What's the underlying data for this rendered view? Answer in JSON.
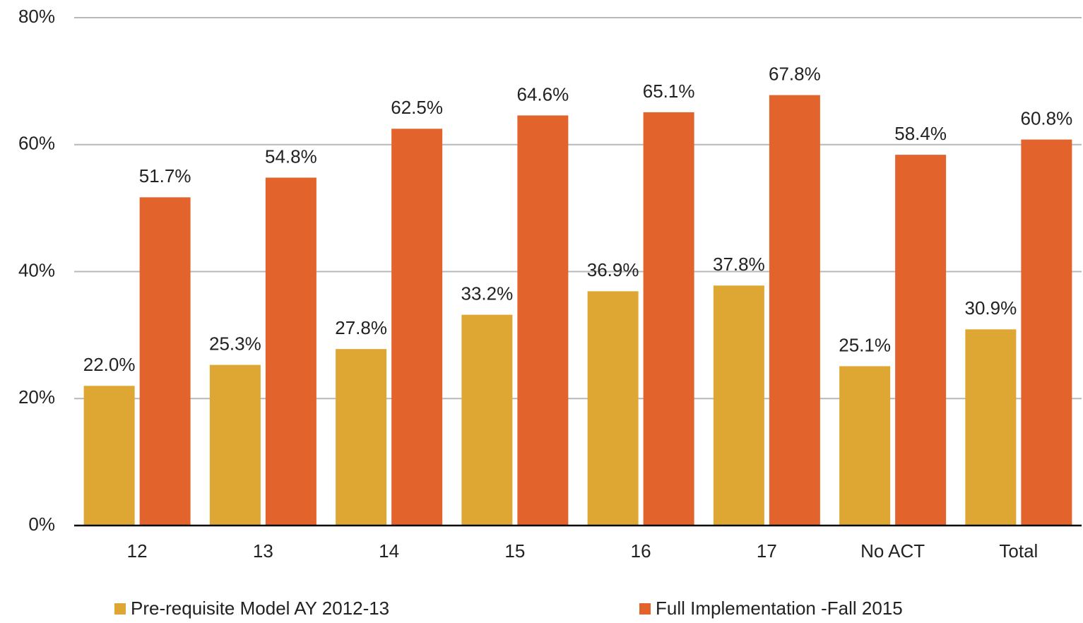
{
  "chart_data": {
    "type": "bar",
    "categories": [
      "12",
      "13",
      "14",
      "15",
      "16",
      "17",
      "No ACT",
      "Total"
    ],
    "series": [
      {
        "name": "Pre-requisite Model AY 2012-13",
        "color": "#dea632",
        "values": [
          22.0,
          25.3,
          27.8,
          33.2,
          36.9,
          37.8,
          25.1,
          30.9
        ],
        "value_labels": [
          "22.0%",
          "25.3%",
          "27.8%",
          "33.2%",
          "36.9%",
          "37.8%",
          "25.1%",
          "30.9%"
        ]
      },
      {
        "name": "Full Implementation -Fall 2015",
        "color": "#e2632b",
        "values": [
          51.7,
          54.8,
          62.5,
          64.6,
          65.1,
          67.8,
          58.4,
          60.8
        ],
        "value_labels": [
          "51.7%",
          "54.8%",
          "62.5%",
          "64.6%",
          "65.1%",
          "67.8%",
          "58.4%",
          "60.8%"
        ]
      }
    ],
    "ylim": [
      0,
      80
    ],
    "yticks": [
      {
        "value": 0,
        "label": "0%"
      },
      {
        "value": 20,
        "label": "20%"
      },
      {
        "value": 40,
        "label": "40%"
      },
      {
        "value": 60,
        "label": "60%"
      },
      {
        "value": 80,
        "label": "80%"
      }
    ],
    "grid": true,
    "legend": "bottom"
  }
}
